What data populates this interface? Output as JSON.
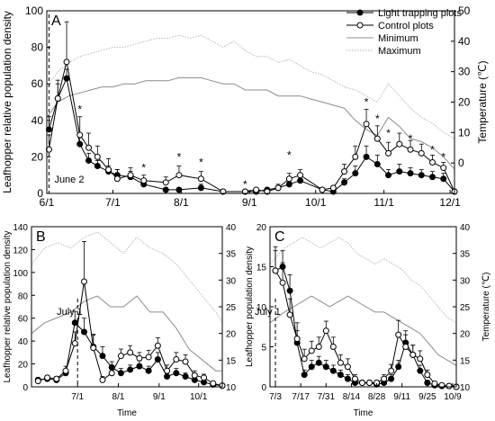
{
  "legend": {
    "light": "Light trapping plots",
    "control": "Control plots",
    "minimum": "Minimum",
    "maximum": "Maximum"
  },
  "chart_data": [
    {
      "panel": "A",
      "type": "line",
      "ylabel": "Leafhopper relative population density",
      "y2label": "Temperature (℃)",
      "xlabel": "",
      "annotation": "June 2",
      "annotation_x": 1,
      "xlim": [
        0,
        185
      ],
      "ylim": [
        0,
        100
      ],
      "y2lim": [
        -10,
        50
      ],
      "yticks": [
        0,
        20,
        40,
        60,
        80,
        100
      ],
      "y2ticks": [
        0,
        10,
        20,
        30,
        40,
        50
      ],
      "xticks": [
        {
          "x": 0,
          "label": "6/1"
        },
        {
          "x": 30,
          "label": "7/1"
        },
        {
          "x": 61,
          "label": "8/1"
        },
        {
          "x": 92,
          "label": "9/1"
        },
        {
          "x": 122,
          "label": "10/1"
        },
        {
          "x": 153,
          "label": "11/1"
        },
        {
          "x": 183,
          "label": "12/1"
        }
      ],
      "series": [
        {
          "name": "Light trapping plots",
          "marker": "filled",
          "x": [
            1,
            5,
            9,
            15,
            19,
            23,
            28,
            32,
            38,
            44,
            54,
            60,
            70,
            80,
            90,
            95,
            100,
            105,
            110,
            115,
            125,
            130,
            135,
            140,
            145,
            150,
            155,
            160,
            165,
            170,
            175,
            180,
            185
          ],
          "y": [
            35,
            52,
            63,
            27,
            18,
            15,
            12,
            10,
            9,
            5,
            2,
            2,
            3,
            1,
            1,
            1,
            2,
            3,
            5,
            7,
            2,
            1,
            6,
            11,
            20,
            16,
            10,
            12,
            11,
            10,
            9,
            8,
            1
          ],
          "err": [
            7,
            8,
            5,
            6,
            4,
            3,
            3,
            3,
            3,
            2,
            1,
            1,
            2,
            1,
            1,
            1,
            1,
            1,
            2,
            2,
            1,
            1,
            2,
            4,
            6,
            5,
            3,
            4,
            3,
            3,
            3,
            3,
            1
          ]
        },
        {
          "name": "Control plots",
          "marker": "open",
          "x": [
            1,
            5,
            9,
            15,
            19,
            23,
            28,
            32,
            38,
            44,
            54,
            60,
            70,
            80,
            90,
            95,
            100,
            105,
            110,
            115,
            125,
            130,
            135,
            140,
            145,
            150,
            155,
            160,
            165,
            170,
            175,
            180,
            185
          ],
          "y": [
            24,
            52,
            72,
            32,
            25,
            20,
            13,
            8,
            10,
            7,
            6,
            10,
            8,
            1,
            1,
            2,
            1,
            3,
            8,
            10,
            2,
            3,
            12,
            20,
            38,
            30,
            22,
            27,
            24,
            22,
            17,
            14,
            1
          ],
          "err": [
            8,
            10,
            22,
            10,
            8,
            6,
            6,
            5,
            4,
            3,
            3,
            5,
            4,
            1,
            1,
            1,
            1,
            2,
            3,
            3,
            1,
            1,
            4,
            6,
            8,
            7,
            6,
            6,
            5,
            5,
            4,
            3,
            1
          ]
        },
        {
          "name": "Minimum",
          "style": "solid-gray",
          "axis": "right",
          "x": [
            0,
            5,
            10,
            15,
            20,
            25,
            30,
            35,
            40,
            45,
            50,
            55,
            60,
            65,
            70,
            75,
            80,
            85,
            90,
            95,
            100,
            105,
            110,
            115,
            120,
            125,
            130,
            135,
            140,
            145,
            150,
            155,
            160,
            165,
            170,
            175,
            180,
            185
          ],
          "y": [
            15,
            20,
            22,
            23,
            24,
            25,
            25,
            26,
            26,
            27,
            27,
            27,
            28,
            28,
            28,
            27,
            26,
            26,
            24,
            24,
            24,
            22,
            22,
            22,
            21,
            20,
            19,
            18,
            14,
            11,
            9,
            15,
            12,
            8,
            7,
            5,
            2,
            -2
          ]
        },
        {
          "name": "Maximum",
          "style": "dotted-gray",
          "axis": "right",
          "x": [
            0,
            5,
            10,
            15,
            20,
            25,
            30,
            35,
            40,
            45,
            50,
            55,
            60,
            65,
            70,
            75,
            80,
            85,
            90,
            95,
            100,
            105,
            110,
            115,
            120,
            125,
            130,
            135,
            140,
            145,
            150,
            155,
            160,
            165,
            170,
            175,
            180,
            185
          ],
          "y": [
            25,
            30,
            33,
            35,
            36,
            37,
            38,
            38,
            39,
            40,
            41,
            41,
            42,
            41,
            42,
            40,
            38,
            40,
            37,
            35,
            35,
            33,
            34,
            32,
            30,
            29,
            27,
            25,
            24,
            22,
            20,
            26,
            22,
            18,
            15,
            13,
            10,
            8
          ]
        }
      ]
    },
    {
      "panel": "B",
      "type": "line",
      "ylabel": "Leafhopper relative population density",
      "y2label": "",
      "xlabel": "Time",
      "annotation": "July 1",
      "annotation_x": 30,
      "xlim": [
        -5,
        140
      ],
      "ylim": [
        0,
        140
      ],
      "y2lim": [
        10,
        40
      ],
      "yticks": [
        0,
        20,
        40,
        60,
        80,
        100,
        120,
        140
      ],
      "y2ticks": [
        10,
        15,
        20,
        25,
        30,
        35,
        40
      ],
      "xticks": [
        {
          "x": 30,
          "label": "7/1"
        },
        {
          "x": 61,
          "label": "8/1"
        },
        {
          "x": 92,
          "label": "9/1"
        },
        {
          "x": 122,
          "label": "10/1"
        }
      ],
      "series": [
        {
          "name": "Light trapping plots",
          "marker": "filled",
          "x": [
            0,
            7,
            14,
            21,
            28,
            35,
            42,
            49,
            56,
            63,
            70,
            77,
            84,
            91,
            98,
            105,
            112,
            119,
            126,
            133,
            140
          ],
          "y": [
            6,
            7,
            6,
            12,
            56,
            48,
            35,
            27,
            17,
            12,
            15,
            18,
            14,
            24,
            9,
            12,
            9,
            6,
            4,
            2,
            1
          ],
          "err": [
            2,
            2,
            2,
            3,
            10,
            12,
            10,
            8,
            5,
            4,
            4,
            5,
            4,
            6,
            3,
            4,
            3,
            2,
            2,
            1,
            1
          ]
        },
        {
          "name": "Control plots",
          "marker": "open",
          "x": [
            0,
            7,
            14,
            21,
            28,
            35,
            42,
            49,
            56,
            63,
            70,
            77,
            84,
            91,
            98,
            105,
            112,
            119,
            126,
            133,
            140
          ],
          "y": [
            5,
            8,
            7,
            14,
            38,
            92,
            34,
            6,
            12,
            27,
            30,
            25,
            26,
            36,
            14,
            24,
            22,
            10,
            8,
            3,
            1
          ],
          "err": [
            2,
            2,
            2,
            4,
            10,
            35,
            12,
            3,
            5,
            6,
            6,
            5,
            6,
            7,
            5,
            6,
            6,
            4,
            3,
            1,
            1
          ]
        },
        {
          "name": "Minimum",
          "style": "solid-gray",
          "axis": "right",
          "x": [
            -5,
            5,
            15,
            25,
            35,
            45,
            55,
            65,
            75,
            85,
            95,
            105,
            115,
            125,
            135,
            140
          ],
          "y": [
            20,
            22,
            23,
            24,
            26,
            27,
            25,
            25,
            27,
            24,
            24,
            21,
            17,
            15,
            13,
            13
          ]
        },
        {
          "name": "Maximum",
          "style": "dotted-gray",
          "axis": "right",
          "x": [
            -5,
            5,
            15,
            25,
            35,
            45,
            55,
            65,
            75,
            85,
            95,
            105,
            115,
            125,
            135,
            140
          ],
          "y": [
            33,
            36,
            37,
            36,
            38,
            39,
            37,
            35,
            38,
            36,
            35,
            33,
            30,
            27,
            24,
            22
          ]
        }
      ]
    },
    {
      "panel": "C",
      "type": "line",
      "ylabel": "Leafhopper population density",
      "y2label": "Temperature (℃)",
      "xlabel": "Time",
      "annotation": "July 1",
      "annotation_x": 0,
      "xlim": [
        -3,
        100
      ],
      "ylim": [
        0,
        20
      ],
      "y2lim": [
        10,
        40
      ],
      "yticks": [
        0,
        5,
        10,
        15,
        20
      ],
      "y2ticks": [
        10,
        15,
        20,
        25,
        30,
        35,
        40
      ],
      "xticks": [
        {
          "x": 0,
          "label": "7/3"
        },
        {
          "x": 14,
          "label": "7/17"
        },
        {
          "x": 28,
          "label": "7/31"
        },
        {
          "x": 42,
          "label": "8/14"
        },
        {
          "x": 56,
          "label": "8/28"
        },
        {
          "x": 70,
          "label": "9/11"
        },
        {
          "x": 84,
          "label": "9/25"
        },
        {
          "x": 98,
          "label": "10/9"
        }
      ],
      "series": [
        {
          "name": "Light trapping plots",
          "marker": "filled",
          "x": [
            0,
            4,
            8,
            12,
            16,
            20,
            24,
            28,
            32,
            36,
            40,
            44,
            48,
            52,
            56,
            60,
            64,
            68,
            72,
            76,
            80,
            84,
            88,
            92,
            96,
            100
          ],
          "y": [
            14.5,
            15,
            12,
            5.5,
            1.5,
            2.5,
            3,
            2.5,
            2,
            1.5,
            1,
            0.5,
            0.5,
            0.5,
            0.3,
            0.5,
            1,
            2.5,
            5.5,
            4,
            2,
            0.5,
            0.2,
            0.1,
            0.1,
            0
          ],
          "err": [
            2.5,
            2,
            2,
            1.5,
            0.6,
            0.8,
            0.8,
            0.8,
            0.7,
            0.6,
            0.5,
            0.3,
            0.3,
            0.3,
            0.2,
            0.3,
            0.5,
            0.8,
            1.5,
            1.2,
            0.7,
            0.3,
            0.1,
            0.1,
            0.1,
            0
          ]
        },
        {
          "name": "Control plots",
          "marker": "open",
          "x": [
            0,
            4,
            8,
            12,
            16,
            20,
            24,
            28,
            32,
            36,
            40,
            44,
            48,
            52,
            56,
            60,
            64,
            68,
            72,
            76,
            80,
            84,
            88,
            92,
            96,
            100
          ],
          "y": [
            14.5,
            13,
            9,
            6,
            3.5,
            4.5,
            5,
            7,
            5,
            3,
            2.5,
            1,
            0.5,
            0.5,
            0.5,
            1,
            2,
            6.5,
            5,
            4,
            3.5,
            1.5,
            0.4,
            0.2,
            0.1,
            0
          ],
          "err": [
            3,
            2.5,
            2,
            2,
            1.2,
            1.2,
            1.2,
            1.2,
            1.2,
            1,
            1,
            0.5,
            0.3,
            0.3,
            0.3,
            0.5,
            0.8,
            1.8,
            1.5,
            1.2,
            1,
            0.6,
            0.2,
            0.1,
            0.1,
            0
          ]
        },
        {
          "name": "Minimum",
          "style": "solid-gray",
          "axis": "right",
          "x": [
            -3,
            5,
            10,
            15,
            20,
            25,
            30,
            35,
            40,
            45,
            50,
            55,
            60,
            65,
            70,
            75,
            80,
            85,
            90,
            95,
            100
          ],
          "y": [
            22,
            24,
            25,
            26,
            27,
            26,
            25,
            26,
            27,
            26,
            25,
            24,
            24,
            23,
            22,
            21,
            20,
            18,
            16,
            15,
            14
          ]
        },
        {
          "name": "Maximum",
          "style": "dotted-gray",
          "axis": "right",
          "x": [
            -3,
            5,
            10,
            15,
            20,
            25,
            30,
            35,
            40,
            45,
            50,
            55,
            60,
            65,
            70,
            75,
            80,
            85,
            90,
            95,
            100
          ],
          "y": [
            33,
            36,
            37,
            38,
            37,
            36,
            37,
            38,
            37,
            35,
            34,
            33,
            34,
            33,
            32,
            30,
            29,
            27,
            25,
            23,
            22
          ]
        }
      ]
    }
  ]
}
